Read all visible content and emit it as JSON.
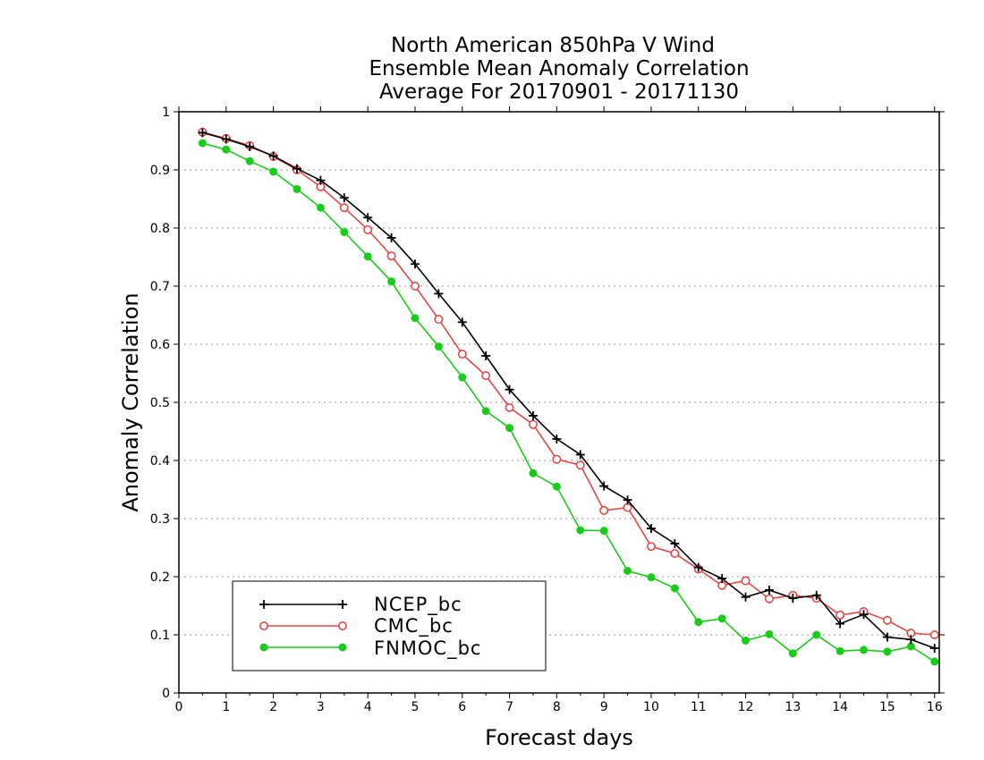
{
  "chart_data": {
    "type": "line",
    "title_lines": [
      "North American 850hPa V Wind",
      "Ensemble Mean Anomaly Correlation",
      "Average For 20170901 - 20171130"
    ],
    "xlabel": "Forecast days",
    "ylabel": "Anomaly Correlation",
    "xlim": [
      0,
      16.1
    ],
    "ylim": [
      0,
      1
    ],
    "xticks": [
      "0",
      "1",
      "2",
      "3",
      "4",
      "5",
      "6",
      "7",
      "8",
      "9",
      "10",
      "11",
      "12",
      "13",
      "14",
      "15",
      "16"
    ],
    "yticks": [
      "0",
      "0.1",
      "0.2",
      "0.3",
      "0.4",
      "0.5",
      "0.6",
      "0.7",
      "0.8",
      "0.9",
      "1"
    ],
    "grid": "horizontal-dotted",
    "legend_position": "bottom-left",
    "x": [
      0.5,
      1,
      1.5,
      2,
      2.5,
      3,
      3.5,
      4,
      4.5,
      5,
      5.5,
      6,
      6.5,
      7,
      7.5,
      8,
      8.5,
      9,
      9.5,
      10,
      10.5,
      11,
      11.5,
      12,
      12.5,
      13,
      13.5,
      14,
      14.5,
      15,
      15.5,
      16
    ],
    "series": [
      {
        "name": "NCEP_bc",
        "color": "#000000",
        "marker": "plus",
        "values": [
          0.964,
          0.953,
          0.94,
          0.924,
          0.902,
          0.882,
          0.852,
          0.818,
          0.783,
          0.738,
          0.687,
          0.638,
          0.58,
          0.522,
          0.477,
          0.437,
          0.41,
          0.356,
          0.332,
          0.283,
          0.257,
          0.216,
          0.197,
          0.165,
          0.177,
          0.163,
          0.168,
          0.119,
          0.135,
          0.096,
          0.092,
          0.077
        ]
      },
      {
        "name": "CMC_bc",
        "color": "#e34848",
        "marker": "open-circle",
        "values": [
          0.965,
          0.954,
          0.942,
          0.923,
          0.9,
          0.871,
          0.835,
          0.797,
          0.752,
          0.7,
          0.643,
          0.583,
          0.546,
          0.491,
          0.462,
          0.402,
          0.392,
          0.314,
          0.319,
          0.252,
          0.24,
          0.213,
          0.185,
          0.193,
          0.162,
          0.168,
          0.163,
          0.134,
          0.14,
          0.125,
          0.103,
          0.1
        ]
      },
      {
        "name": "FNMOC_bc",
        "color": "#19cc19",
        "marker": "filled-circle",
        "values": [
          0.946,
          0.935,
          0.915,
          0.897,
          0.867,
          0.835,
          0.793,
          0.751,
          0.708,
          0.645,
          0.596,
          0.543,
          0.485,
          0.456,
          0.378,
          0.355,
          0.28,
          0.279,
          0.21,
          0.199,
          0.18,
          0.122,
          0.128,
          0.09,
          0.101,
          0.068,
          0.1,
          0.072,
          0.074,
          0.071,
          0.08,
          0.054
        ]
      }
    ]
  }
}
